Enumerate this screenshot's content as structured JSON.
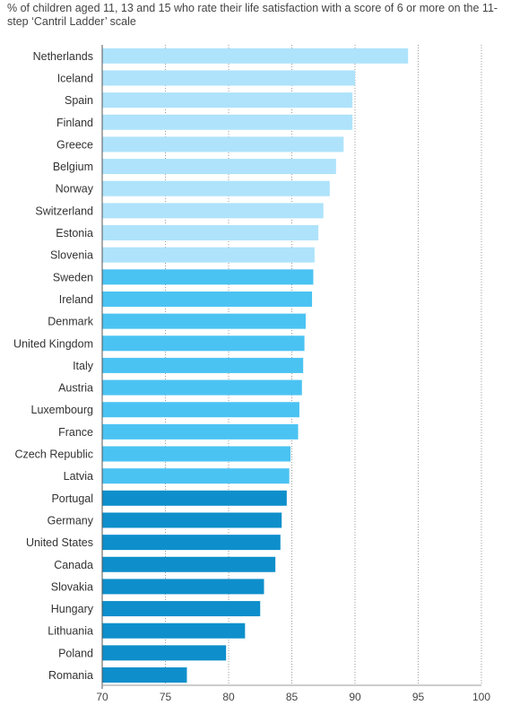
{
  "chart_data": {
    "type": "bar",
    "orientation": "horizontal",
    "title": "% of children aged 11, 13 and 15 who rate their life satisfaction with a score of 6 or more on the 11-step ‘Cantril Ladder’ scale",
    "categories": [
      "Netherlands",
      "Iceland",
      "Spain",
      "Finland",
      "Greece",
      "Belgium",
      "Norway",
      "Switzerland",
      "Estonia",
      "Slovenia",
      "Sweden",
      "Ireland",
      "Denmark",
      "United Kingdom",
      "Italy",
      "Austria",
      "Luxembourg",
      "France",
      "Czech Republic",
      "Latvia",
      "Portugal",
      "Germany",
      "United States",
      "Canada",
      "Slovakia",
      "Hungary",
      "Lithuania",
      "Poland",
      "Romania"
    ],
    "values": [
      94.2,
      90.0,
      89.8,
      89.8,
      89.1,
      88.5,
      88.0,
      87.5,
      87.1,
      86.8,
      86.7,
      86.6,
      86.1,
      86.0,
      85.9,
      85.8,
      85.6,
      85.5,
      84.9,
      84.8,
      84.6,
      84.2,
      84.1,
      83.7,
      82.8,
      82.5,
      81.3,
      79.8,
      76.7
    ],
    "colors": [
      "#aee3fb",
      "#aee3fb",
      "#aee3fb",
      "#aee3fb",
      "#aee3fb",
      "#aee3fb",
      "#aee3fb",
      "#aee3fb",
      "#aee3fb",
      "#aee3fb",
      "#4bc3f2",
      "#4bc3f2",
      "#4bc3f2",
      "#4bc3f2",
      "#4bc3f2",
      "#4bc3f2",
      "#4bc3f2",
      "#4bc3f2",
      "#4bc3f2",
      "#4bc3f2",
      "#0e8fcb",
      "#0e8fcb",
      "#0e8fcb",
      "#0e8fcb",
      "#0e8fcb",
      "#0e8fcb",
      "#0e8fcb",
      "#0e8fcb",
      "#0e8fcb"
    ],
    "xlim": [
      70,
      100
    ],
    "xticks": [
      70,
      75,
      80,
      85,
      90,
      95,
      100
    ],
    "xtick_labels": [
      "70",
      "75",
      "80",
      "85",
      "90",
      "95",
      "100"
    ],
    "grid": "vertical dotted",
    "xlabel": "",
    "ylabel": ""
  }
}
